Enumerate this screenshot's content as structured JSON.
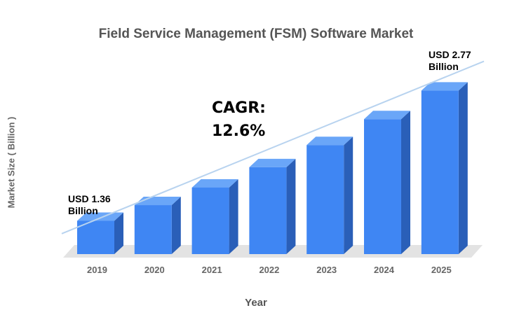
{
  "chart_data": {
    "type": "bar",
    "title": "Field Service Management (FSM) Software Market",
    "xlabel": "Year",
    "ylabel": "Market Size ( Billion )",
    "categories": [
      "2019",
      "2020",
      "2021",
      "2022",
      "2023",
      "2024",
      "2025"
    ],
    "values": [
      1.36,
      1.53,
      1.72,
      1.94,
      2.18,
      2.46,
      2.77
    ],
    "ylim": [
      1.0,
      2.85
    ],
    "grid": false,
    "legend": "none",
    "annotations": {
      "cagr_line1": "CAGR:",
      "cagr_line2": "12.6%",
      "start_line1": "USD 1.36",
      "start_line2": "Billion",
      "end_line1": "USD 2.77",
      "end_line2": "Billion"
    },
    "colors": {
      "bar_front": "#3f86f3",
      "bar_side": "#2a5fb8",
      "bar_top": "#6aa6f8",
      "floor": "#e3e3e3",
      "trend": "#b8d3ef"
    }
  }
}
